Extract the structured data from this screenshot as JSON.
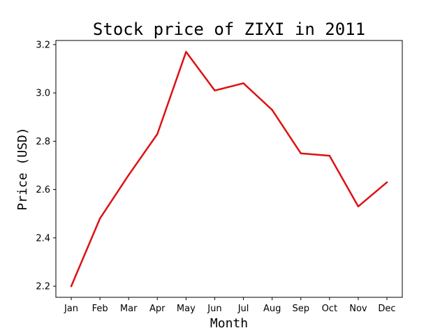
{
  "chart_data": {
    "type": "line",
    "title": "Stock price of ZIXI in 2011",
    "xlabel": "Month",
    "ylabel": "Price (USD)",
    "categories": [
      "Jan",
      "Feb",
      "Mar",
      "Apr",
      "May",
      "Jun",
      "Jul",
      "Aug",
      "Sep",
      "Oct",
      "Nov",
      "Dec"
    ],
    "series": [
      {
        "values": [
          2.2,
          2.48,
          2.66,
          2.83,
          3.17,
          3.01,
          3.04,
          2.93,
          2.75,
          2.74,
          2.53,
          2.63
        ],
        "color": "#dd1111"
      }
    ],
    "yticks": [
      "2.2",
      "2.4",
      "2.6",
      "2.8",
      "3.0",
      "3.2"
    ],
    "ylim": [
      2.154,
      3.217
    ],
    "grid": false,
    "legend": "none"
  }
}
